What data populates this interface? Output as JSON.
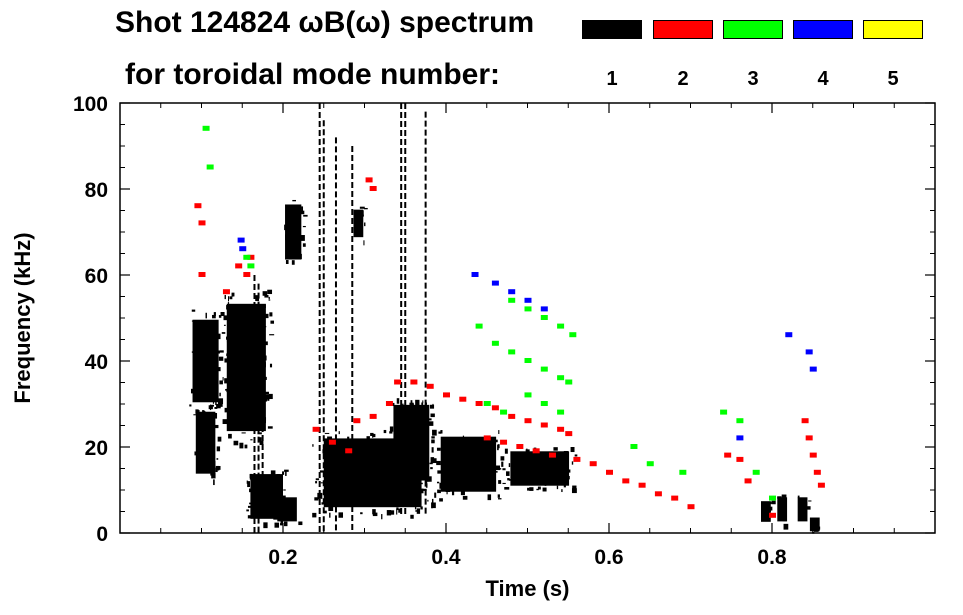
{
  "chart_data": {
    "type": "heatmap",
    "title": "Shot 124824 ωB(ω) spectrum",
    "subtitle": "for toroidal mode number:",
    "xlabel": "Time (s)",
    "ylabel": "Frequency (kHz)",
    "xlim": [
      0.0,
      1.0
    ],
    "ylim": [
      0,
      100
    ],
    "xticks": [
      "0.2",
      "0.4",
      "0.6",
      "0.8"
    ],
    "xtick_values": [
      0.2,
      0.4,
      0.6,
      0.8
    ],
    "yticks": [
      "0",
      "20",
      "40",
      "60",
      "80",
      "100"
    ],
    "ytick_values": [
      0,
      20,
      40,
      60,
      80,
      100
    ],
    "grid": false,
    "legend": {
      "placement": "top-right",
      "entries": [
        {
          "label": "1",
          "color": "#000000"
        },
        {
          "label": "2",
          "color": "#ff0000"
        },
        {
          "label": "3",
          "color": "#00ff00"
        },
        {
          "label": "4",
          "color": "#0000ff"
        },
        {
          "label": "5",
          "color": "#ffff00"
        }
      ]
    },
    "series": [
      {
        "name": "1",
        "color": "#000000",
        "regions": [
          {
            "t0": 0.085,
            "t1": 0.125,
            "f0": 28,
            "f1": 52
          },
          {
            "t0": 0.09,
            "t1": 0.12,
            "f0": 12,
            "f1": 30
          },
          {
            "t0": 0.125,
            "t1": 0.185,
            "f0": 20,
            "f1": 57
          },
          {
            "t0": 0.155,
            "t1": 0.205,
            "f0": 2,
            "f1": 15
          },
          {
            "t0": 0.19,
            "t1": 0.22,
            "f0": 2,
            "f1": 9
          },
          {
            "t0": 0.2,
            "t1": 0.225,
            "f0": 62,
            "f1": 78
          },
          {
            "t0": 0.235,
            "t1": 0.385,
            "f0": 4,
            "f1": 24
          },
          {
            "t0": 0.33,
            "t1": 0.385,
            "f0": 10,
            "f1": 32
          },
          {
            "t0": 0.385,
            "t1": 0.47,
            "f0": 8,
            "f1": 24
          },
          {
            "t0": 0.47,
            "t1": 0.56,
            "f0": 10,
            "f1": 20
          },
          {
            "t0": 0.785,
            "t1": 0.8,
            "f0": 2,
            "f1": 8
          },
          {
            "t0": 0.805,
            "t1": 0.82,
            "f0": 2,
            "f1": 9
          },
          {
            "t0": 0.83,
            "t1": 0.845,
            "f0": 2,
            "f1": 9
          },
          {
            "t0": 0.845,
            "t1": 0.86,
            "f0": 0,
            "f1": 4
          },
          {
            "t0": 0.285,
            "t1": 0.3,
            "f0": 68,
            "f1": 76
          }
        ],
        "spikes": [
          {
            "t": 0.165,
            "f0": 0,
            "f1": 60
          },
          {
            "t": 0.17,
            "f0": 0,
            "f1": 58
          },
          {
            "t": 0.175,
            "f0": 4,
            "f1": 50
          },
          {
            "t": 0.245,
            "f0": 0,
            "f1": 100
          },
          {
            "t": 0.25,
            "f0": 0,
            "f1": 96
          },
          {
            "t": 0.265,
            "f0": 0,
            "f1": 92
          },
          {
            "t": 0.285,
            "f0": 0,
            "f1": 90
          },
          {
            "t": 0.345,
            "f0": 4,
            "f1": 100
          },
          {
            "t": 0.35,
            "f0": 4,
            "f1": 100
          },
          {
            "t": 0.375,
            "f0": 4,
            "f1": 98
          }
        ]
      },
      {
        "name": "2",
        "color": "#ff0000",
        "points": [
          [
            0.095,
            76
          ],
          [
            0.1,
            72
          ],
          [
            0.1,
            60
          ],
          [
            0.13,
            56
          ],
          [
            0.145,
            62
          ],
          [
            0.155,
            60
          ],
          [
            0.16,
            64
          ],
          [
            0.24,
            24
          ],
          [
            0.26,
            21
          ],
          [
            0.28,
            19
          ],
          [
            0.29,
            26
          ],
          [
            0.31,
            27
          ],
          [
            0.33,
            30
          ],
          [
            0.34,
            35
          ],
          [
            0.36,
            35
          ],
          [
            0.38,
            34
          ],
          [
            0.4,
            32
          ],
          [
            0.42,
            31
          ],
          [
            0.44,
            30
          ],
          [
            0.46,
            29
          ],
          [
            0.48,
            27
          ],
          [
            0.5,
            26
          ],
          [
            0.52,
            25
          ],
          [
            0.54,
            24
          ],
          [
            0.55,
            23
          ],
          [
            0.45,
            22
          ],
          [
            0.47,
            21
          ],
          [
            0.49,
            20
          ],
          [
            0.51,
            19
          ],
          [
            0.53,
            18
          ],
          [
            0.56,
            17
          ],
          [
            0.58,
            16
          ],
          [
            0.6,
            14
          ],
          [
            0.62,
            12
          ],
          [
            0.64,
            11
          ],
          [
            0.66,
            9
          ],
          [
            0.68,
            8
          ],
          [
            0.7,
            6
          ],
          [
            0.745,
            18
          ],
          [
            0.76,
            17
          ],
          [
            0.77,
            12
          ],
          [
            0.8,
            4
          ],
          [
            0.84,
            26
          ],
          [
            0.845,
            22
          ],
          [
            0.85,
            18
          ],
          [
            0.855,
            14
          ],
          [
            0.86,
            11
          ],
          [
            0.305,
            82
          ],
          [
            0.31,
            80
          ]
        ]
      },
      {
        "name": "3",
        "color": "#00ff00",
        "points": [
          [
            0.105,
            94
          ],
          [
            0.11,
            85
          ],
          [
            0.155,
            64
          ],
          [
            0.16,
            62
          ],
          [
            0.48,
            54
          ],
          [
            0.5,
            52
          ],
          [
            0.52,
            50
          ],
          [
            0.54,
            48
          ],
          [
            0.555,
            46
          ],
          [
            0.46,
            44
          ],
          [
            0.48,
            42
          ],
          [
            0.5,
            40
          ],
          [
            0.52,
            38
          ],
          [
            0.54,
            36
          ],
          [
            0.55,
            35
          ],
          [
            0.5,
            32
          ],
          [
            0.52,
            30
          ],
          [
            0.54,
            28
          ],
          [
            0.45,
            30
          ],
          [
            0.47,
            28
          ],
          [
            0.44,
            48
          ],
          [
            0.74,
            28
          ],
          [
            0.76,
            26
          ],
          [
            0.78,
            14
          ],
          [
            0.8,
            8
          ],
          [
            0.63,
            20
          ],
          [
            0.65,
            16
          ],
          [
            0.69,
            14
          ]
        ]
      },
      {
        "name": "4",
        "color": "#0000ff",
        "points": [
          [
            0.148,
            68
          ],
          [
            0.15,
            66
          ],
          [
            0.435,
            60
          ],
          [
            0.46,
            58
          ],
          [
            0.48,
            56
          ],
          [
            0.5,
            54
          ],
          [
            0.52,
            52
          ],
          [
            0.76,
            22
          ],
          [
            0.82,
            46
          ],
          [
            0.845,
            42
          ],
          [
            0.85,
            38
          ]
        ]
      },
      {
        "name": "5",
        "color": "#ffff00",
        "points": []
      }
    ]
  }
}
